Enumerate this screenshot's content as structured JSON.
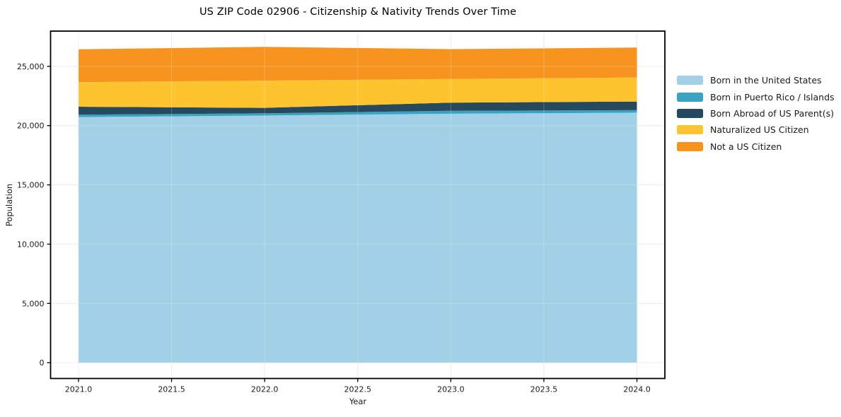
{
  "figure": {
    "background_color": "#ffffff",
    "text_color": "#1a1a1a",
    "grid_color": "#e8e8e8",
    "spine_color": "#000000"
  },
  "chart_data": {
    "type": "area",
    "stacked": true,
    "title": "US ZIP Code 02906 - Citizenship & Nativity Trends Over Time",
    "xlabel": "Year",
    "ylabel": "Population",
    "x": [
      2021,
      2022,
      2023,
      2024
    ],
    "series": [
      {
        "name": "Born in the United States",
        "color": "#A2D1E7",
        "values": [
          20720,
          20850,
          21000,
          21090
        ]
      },
      {
        "name": "Born in Puerto Rico / Islands",
        "color": "#38A3C3",
        "values": [
          200,
          190,
          250,
          210
        ]
      },
      {
        "name": "Born Abroad of US Parent(s)",
        "color": "#27495E",
        "values": [
          670,
          460,
          690,
          730
        ]
      },
      {
        "name": "Naturalized US Citizen",
        "color": "#FDC42F",
        "values": [
          2080,
          2290,
          1990,
          2030
        ]
      },
      {
        "name": "Not a US Citizen",
        "color": "#F7941F",
        "values": [
          2770,
          2850,
          2520,
          2520
        ]
      }
    ],
    "stack_totals": [
      26440,
      26640,
      26450,
      26580
    ],
    "x_ticks": [
      "2021.0",
      "2021.5",
      "2022.0",
      "2022.5",
      "2023.0",
      "2023.5",
      "2024.0"
    ],
    "x_tick_values": [
      2021,
      2021.5,
      2022,
      2022.5,
      2023,
      2023.5,
      2024
    ],
    "y_ticks": [
      "0",
      "5,000",
      "10,000",
      "15,000",
      "20,000",
      "25,000"
    ],
    "y_tick_values": [
      0,
      5000,
      10000,
      15000,
      20000,
      25000
    ],
    "xlim": [
      2020.85,
      2024.15
    ],
    "ylim": [
      -1332,
      27972
    ],
    "grid": true,
    "legend_position": "outside-right"
  }
}
